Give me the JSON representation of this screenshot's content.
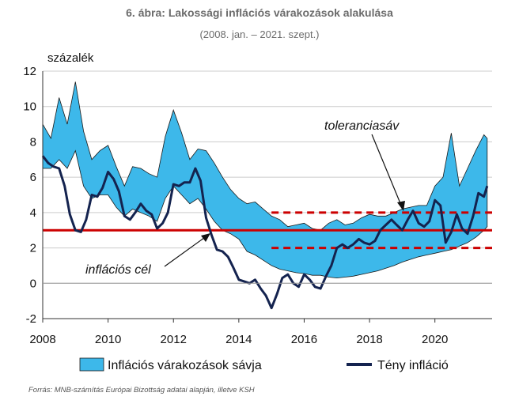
{
  "title": "6. ábra: Lakossági inflációs várakozások alakulása",
  "subtitle": "(2008. jan. – 2021. szept.)",
  "source": "Forrás: MNB-számítás Európai Bizottság adatai alapján, illetve KSH",
  "colors": {
    "band_fill": "#3db8ea",
    "band_stroke": "#1a1a1a",
    "actual_line": "#14234f",
    "target_line": "#cc0000",
    "tolerance_line": "#cc0000",
    "grid": "#cccccc"
  },
  "chart_data": {
    "type": "area",
    "ylabel": "százalék",
    "ylim": [
      -2,
      12
    ],
    "xlim": [
      2008.0,
      2021.75
    ],
    "yticks": [
      "-2",
      "0",
      "2",
      "4",
      "6",
      "8",
      "10",
      "12"
    ],
    "xticks": [
      "2008",
      "2010",
      "2012",
      "2014",
      "2016",
      "2018",
      "2020"
    ],
    "grid": true,
    "legend_position": "bottom",
    "annotations": {
      "target_label": "inflációs cél",
      "tolerance_label": "toleranciasáv"
    },
    "reference_lines": {
      "target": 3,
      "tolerance_upper": 4,
      "tolerance_lower": 2,
      "tolerance_from": 2015.0
    },
    "series": [
      {
        "name": "Inflációs várakozások sávja",
        "type": "band",
        "x": [
          2008.0,
          2008.25,
          2008.5,
          2008.75,
          2009.0,
          2009.25,
          2009.5,
          2009.75,
          2010.0,
          2010.25,
          2010.5,
          2010.75,
          2011.0,
          2011.25,
          2011.5,
          2011.75,
          2012.0,
          2012.25,
          2012.5,
          2012.75,
          2013.0,
          2013.25,
          2013.5,
          2013.75,
          2014.0,
          2014.25,
          2014.5,
          2014.75,
          2015.0,
          2015.25,
          2015.5,
          2015.75,
          2016.0,
          2016.25,
          2016.5,
          2016.75,
          2017.0,
          2017.25,
          2017.5,
          2017.75,
          2018.0,
          2018.25,
          2018.5,
          2018.75,
          2019.0,
          2019.25,
          2019.5,
          2019.75,
          2020.0,
          2020.25,
          2020.5,
          2020.75,
          2021.0,
          2021.25,
          2021.5,
          2021.6
        ],
        "upper": [
          9.0,
          8.2,
          10.5,
          9.0,
          11.4,
          8.6,
          7.0,
          7.5,
          7.8,
          6.6,
          5.5,
          6.6,
          6.5,
          6.2,
          6.0,
          8.3,
          9.8,
          8.5,
          7.0,
          7.6,
          7.5,
          6.8,
          6.0,
          5.3,
          4.8,
          4.5,
          4.6,
          4.2,
          3.8,
          3.6,
          3.2,
          3.3,
          3.4,
          3.1,
          3.0,
          3.4,
          3.6,
          3.3,
          3.4,
          3.7,
          3.9,
          3.8,
          3.8,
          4.0,
          4.2,
          4.3,
          4.4,
          4.4,
          5.5,
          6.0,
          8.5,
          5.5,
          6.5,
          7.5,
          8.4,
          8.2
        ],
        "lower": [
          6.5,
          6.5,
          7.0,
          6.5,
          7.5,
          5.5,
          4.8,
          5.0,
          5.0,
          4.3,
          3.8,
          4.2,
          4.0,
          3.8,
          3.5,
          4.8,
          5.5,
          5.0,
          4.5,
          4.8,
          4.2,
          3.5,
          3.0,
          2.8,
          2.5,
          1.8,
          1.6,
          1.3,
          1.0,
          0.8,
          0.7,
          0.6,
          0.55,
          0.45,
          0.45,
          0.35,
          0.3,
          0.35,
          0.4,
          0.5,
          0.6,
          0.7,
          0.85,
          1.0,
          1.2,
          1.35,
          1.5,
          1.6,
          1.7,
          1.8,
          1.9,
          2.1,
          2.3,
          2.6,
          3.0,
          3.2
        ]
      },
      {
        "name": "Tény infláció",
        "type": "line",
        "x": [
          2008.0,
          2008.17,
          2008.33,
          2008.5,
          2008.67,
          2008.83,
          2009.0,
          2009.17,
          2009.33,
          2009.5,
          2009.67,
          2009.83,
          2010.0,
          2010.17,
          2010.33,
          2010.5,
          2010.67,
          2010.83,
          2011.0,
          2011.17,
          2011.33,
          2011.5,
          2011.67,
          2011.83,
          2012.0,
          2012.17,
          2012.33,
          2012.5,
          2012.67,
          2012.83,
          2013.0,
          2013.17,
          2013.33,
          2013.5,
          2013.67,
          2013.83,
          2014.0,
          2014.17,
          2014.33,
          2014.5,
          2014.67,
          2014.83,
          2015.0,
          2015.17,
          2015.33,
          2015.5,
          2015.67,
          2015.83,
          2016.0,
          2016.17,
          2016.33,
          2016.5,
          2016.67,
          2016.83,
          2017.0,
          2017.17,
          2017.33,
          2017.5,
          2017.67,
          2017.83,
          2018.0,
          2018.17,
          2018.33,
          2018.5,
          2018.67,
          2018.83,
          2019.0,
          2019.17,
          2019.33,
          2019.5,
          2019.67,
          2019.83,
          2020.0,
          2020.17,
          2020.33,
          2020.5,
          2020.67,
          2020.83,
          2021.0,
          2021.17,
          2021.33,
          2021.5,
          2021.6
        ],
        "values": [
          7.2,
          6.8,
          6.6,
          6.5,
          5.5,
          3.9,
          3.0,
          2.9,
          3.6,
          5.0,
          4.9,
          5.4,
          6.3,
          5.9,
          5.2,
          3.8,
          3.6,
          4.0,
          4.5,
          4.1,
          3.9,
          3.1,
          3.4,
          4.0,
          5.6,
          5.5,
          5.7,
          5.7,
          6.5,
          5.8,
          3.7,
          2.7,
          1.9,
          1.8,
          1.5,
          0.9,
          0.2,
          0.1,
          0.0,
          0.2,
          -0.3,
          -0.7,
          -1.4,
          -0.6,
          0.3,
          0.5,
          0.0,
          -0.2,
          0.5,
          0.2,
          -0.2,
          -0.3,
          0.4,
          1.0,
          2.0,
          2.2,
          2.0,
          2.2,
          2.5,
          2.3,
          2.2,
          2.4,
          3.0,
          3.3,
          3.6,
          3.3,
          3.0,
          3.6,
          4.1,
          3.4,
          3.2,
          3.5,
          4.7,
          4.4,
          2.3,
          2.9,
          3.9,
          3.1,
          2.8,
          3.8,
          5.1,
          4.9,
          5.5
        ]
      }
    ]
  }
}
